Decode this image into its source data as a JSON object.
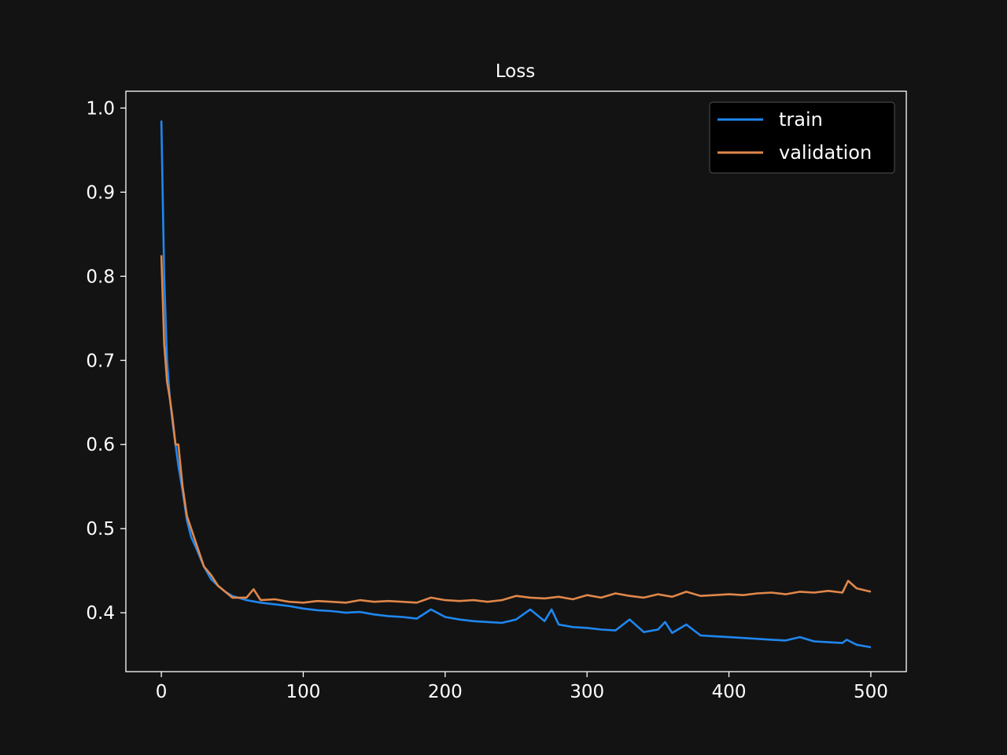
{
  "chart_data": {
    "type": "line",
    "title": "Loss",
    "xlabel": "",
    "ylabel": "",
    "xlim": [
      -25,
      525
    ],
    "ylim": [
      0.33,
      1.02
    ],
    "x_ticks": [
      0,
      100,
      200,
      300,
      400,
      500
    ],
    "y_ticks": [
      0.4,
      0.5,
      0.6,
      0.7,
      0.8,
      0.9,
      1.0
    ],
    "x_tick_labels": [
      "0",
      "100",
      "200",
      "300",
      "400",
      "500"
    ],
    "y_tick_labels": [
      "0.4",
      "0.5",
      "0.6",
      "0.7",
      "0.8",
      "0.9",
      "1.0"
    ],
    "grid": false,
    "legend_position": "top-right",
    "series": [
      {
        "name": "train",
        "color": "#1f87f0",
        "x": [
          0,
          2,
          4,
          6,
          8,
          10,
          12,
          15,
          18,
          21,
          25,
          30,
          35,
          40,
          45,
          50,
          60,
          70,
          80,
          90,
          100,
          110,
          120,
          130,
          140,
          150,
          160,
          170,
          180,
          190,
          200,
          210,
          220,
          230,
          240,
          250,
          260,
          270,
          275,
          280,
          290,
          300,
          310,
          320,
          330,
          340,
          350,
          355,
          360,
          370,
          380,
          390,
          400,
          410,
          420,
          430,
          440,
          450,
          460,
          470,
          480,
          483,
          490,
          500
        ],
        "y": [
          0.985,
          0.8,
          0.7,
          0.655,
          0.625,
          0.6,
          0.575,
          0.545,
          0.51,
          0.49,
          0.475,
          0.455,
          0.44,
          0.432,
          0.425,
          0.42,
          0.415,
          0.412,
          0.41,
          0.408,
          0.405,
          0.403,
          0.402,
          0.4,
          0.401,
          0.398,
          0.396,
          0.395,
          0.393,
          0.404,
          0.395,
          0.392,
          0.39,
          0.389,
          0.388,
          0.392,
          0.404,
          0.39,
          0.404,
          0.386,
          0.383,
          0.382,
          0.38,
          0.379,
          0.392,
          0.377,
          0.38,
          0.389,
          0.376,
          0.386,
          0.373,
          0.372,
          0.371,
          0.37,
          0.369,
          0.368,
          0.367,
          0.371,
          0.366,
          0.365,
          0.364,
          0.368,
          0.362,
          0.359
        ]
      },
      {
        "name": "validation",
        "color": "#e0874a",
        "x": [
          0,
          2,
          4,
          6,
          8,
          10,
          12,
          15,
          18,
          21,
          25,
          30,
          35,
          40,
          45,
          50,
          60,
          65,
          70,
          80,
          90,
          100,
          110,
          120,
          130,
          140,
          150,
          160,
          170,
          180,
          190,
          200,
          210,
          220,
          230,
          240,
          250,
          260,
          270,
          280,
          290,
          300,
          310,
          320,
          330,
          340,
          350,
          360,
          370,
          380,
          390,
          400,
          410,
          420,
          430,
          440,
          450,
          460,
          470,
          480,
          484,
          490,
          500
        ],
        "y": [
          0.825,
          0.72,
          0.675,
          0.655,
          0.63,
          0.6,
          0.6,
          0.55,
          0.515,
          0.5,
          0.48,
          0.455,
          0.445,
          0.432,
          0.425,
          0.418,
          0.418,
          0.428,
          0.415,
          0.416,
          0.413,
          0.412,
          0.414,
          0.413,
          0.412,
          0.415,
          0.413,
          0.414,
          0.413,
          0.412,
          0.418,
          0.415,
          0.414,
          0.415,
          0.413,
          0.415,
          0.42,
          0.418,
          0.417,
          0.419,
          0.416,
          0.421,
          0.418,
          0.423,
          0.42,
          0.418,
          0.422,
          0.419,
          0.425,
          0.42,
          0.421,
          0.422,
          0.421,
          0.423,
          0.424,
          0.422,
          0.425,
          0.424,
          0.426,
          0.424,
          0.438,
          0.429,
          0.425
        ]
      }
    ]
  }
}
